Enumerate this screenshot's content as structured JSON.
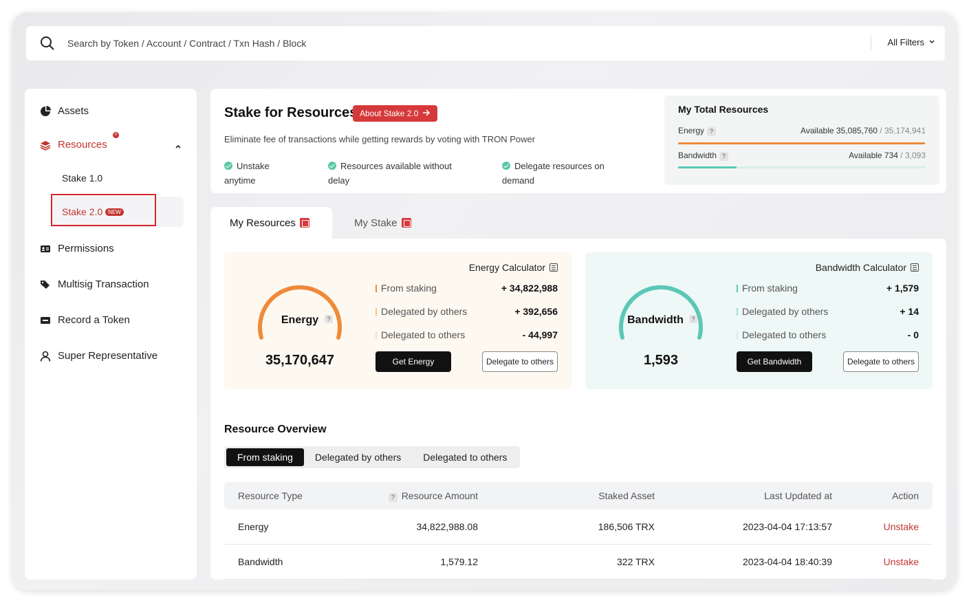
{
  "search": {
    "placeholder": "Search by Token / Account / Contract / Txn Hash / Block",
    "filters_label": "All Filters"
  },
  "sidebar": {
    "items": [
      {
        "label": "Assets",
        "icon": "pie-chart-icon"
      },
      {
        "label": "Resources",
        "icon": "layers-icon",
        "badge": "n"
      },
      {
        "label": "Permissions",
        "icon": "id-card-icon"
      },
      {
        "label": "Multisig Transaction",
        "icon": "tags-icon"
      },
      {
        "label": "Record a Token",
        "icon": "token-card-icon"
      },
      {
        "label": "Super Representative",
        "icon": "user-icon"
      }
    ],
    "sub_items": [
      {
        "label": "Stake 1.0"
      },
      {
        "label": "Stake 2.0",
        "tag": "NEW"
      }
    ]
  },
  "header": {
    "title": "Stake for Resources",
    "about_label": "About Stake 2.0",
    "subtitle": "Eliminate fee of transactions while getting rewards by voting with TRON Power",
    "features": [
      {
        "line1": "Unstake",
        "line2": "anytime"
      },
      {
        "line1": "Resources available without",
        "line2": "delay"
      },
      {
        "line1": "Delegate resources on",
        "line2": "demand"
      }
    ]
  },
  "total_resources": {
    "title": "My Total Resources",
    "energy": {
      "label": "Energy",
      "available_label": "Available 35,085,760",
      "total": "35,174,941",
      "fraction": 0.9975
    },
    "bandwidth": {
      "label": "Bandwidth",
      "available_label": "Available 734",
      "total": "3,093",
      "fraction": 0.237
    }
  },
  "tabs": [
    {
      "label": "My Resources"
    },
    {
      "label": "My Stake"
    }
  ],
  "energy_card": {
    "calculator_label": "Energy Calculator",
    "gauge_label": "Energy",
    "value": "35,170,647",
    "rows": [
      {
        "label": "From staking",
        "value": "+ 34,822,988"
      },
      {
        "label": "Delegated by others",
        "value": "+ 392,656"
      },
      {
        "label": "Delegated to others",
        "value": "- 44,997"
      }
    ],
    "primary_btn": "Get Energy",
    "secondary_btn": "Delegate to others"
  },
  "bandwidth_card": {
    "calculator_label": "Bandwidth Calculator",
    "gauge_label": "Bandwidth",
    "value": "1,593",
    "rows": [
      {
        "label": "From staking",
        "value": "+ 1,579"
      },
      {
        "label": "Delegated by others",
        "value": "+ 14"
      },
      {
        "label": "Delegated to others",
        "value": "- 0"
      }
    ],
    "primary_btn": "Get Bandwidth",
    "secondary_btn": "Delegate to others"
  },
  "overview": {
    "title": "Resource Overview",
    "segments": [
      "From staking",
      "Delegated by others",
      "Delegated to others"
    ],
    "columns": [
      "Resource Type",
      "Resource Amount",
      "Staked Asset",
      "Last Updated at",
      "Action"
    ],
    "rows": [
      {
        "type": "Energy",
        "amount": "34,822,988.08",
        "staked": "186,506 TRX",
        "updated": "2023-04-04 17:13:57",
        "action": "Unstake"
      },
      {
        "type": "Bandwidth",
        "amount": "1,579.12",
        "staked": "322 TRX",
        "updated": "2023-04-04 18:40:39",
        "action": "Unstake"
      }
    ]
  },
  "colors": {
    "accent": "#c23631",
    "energy": "#ee8a3a",
    "bandwidth": "#5cc7b7"
  }
}
